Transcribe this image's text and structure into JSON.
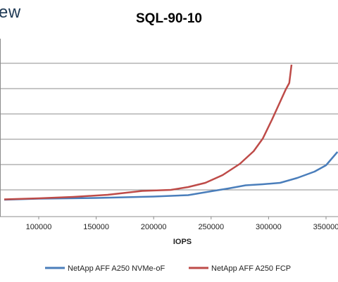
{
  "header": {
    "logo_text": "ew"
  },
  "chart_data": {
    "type": "line",
    "title": "SQL-90-10",
    "xlabel": "IOPS",
    "ylabel": "",
    "x_ticks": [
      100000,
      150000,
      200000,
      250000,
      300000,
      350000
    ],
    "x_tick_labels": [
      "100000",
      "150000",
      "200000",
      "250000",
      "300000",
      "350000"
    ],
    "xlim": [
      70000,
      360000
    ],
    "grid": "horizontal",
    "legend": "bottom",
    "series": [
      {
        "name": "NetApp AFF A250 NVMe-oF",
        "color": "#4a7ebb",
        "points": [
          [
            70000,
            284
          ],
          [
            100000,
            282.5
          ],
          [
            150000,
            281.5
          ],
          [
            200000,
            279.5
          ],
          [
            230000,
            277.5
          ],
          [
            250000,
            272
          ],
          [
            265000,
            268
          ],
          [
            280000,
            263.5
          ],
          [
            295000,
            262
          ],
          [
            310000,
            260
          ],
          [
            325000,
            253
          ],
          [
            340000,
            244
          ],
          [
            350000,
            235
          ],
          [
            360000,
            216
          ]
        ]
      },
      {
        "name": "NetApp AFF A250 FCP",
        "color": "#be4b48",
        "points": [
          [
            70000,
            283.5
          ],
          [
            100000,
            282
          ],
          [
            130000,
            280
          ],
          [
            160000,
            277
          ],
          [
            190000,
            271.5
          ],
          [
            215000,
            270
          ],
          [
            230000,
            266
          ],
          [
            245000,
            260
          ],
          [
            260000,
            249
          ],
          [
            275000,
            233
          ],
          [
            287000,
            215
          ],
          [
            295000,
            197
          ],
          [
            303000,
            170
          ],
          [
            310000,
            145
          ],
          [
            315000,
            127
          ],
          [
            318000,
            118
          ],
          [
            320000,
            92
          ]
        ]
      }
    ]
  }
}
